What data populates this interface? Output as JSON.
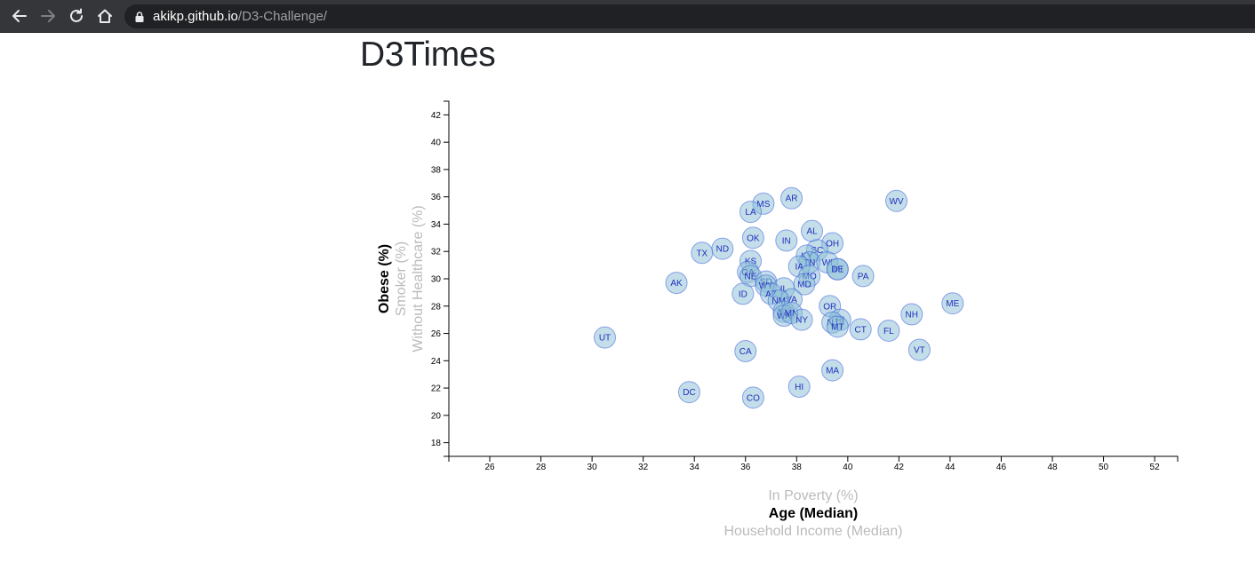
{
  "browser": {
    "url_host": "akikp.github.io",
    "url_path": "/D3-Challenge/",
    "icons": [
      "back-arrow-icon",
      "forward-arrow-icon",
      "reload-icon",
      "home-icon",
      "lock-icon"
    ]
  },
  "page": {
    "title": "D3Times"
  },
  "chart_data": {
    "type": "scatter",
    "title": "",
    "x_labels": [
      {
        "text": "In Poverty (%)",
        "active": false
      },
      {
        "text": "Age (Median)",
        "active": true
      },
      {
        "text": "Household Income (Median)",
        "active": false
      }
    ],
    "y_labels": [
      {
        "text": "Obese (%)",
        "active": true
      },
      {
        "text": "Smoker (%)",
        "active": false
      },
      {
        "text": "Without Healthcare (%)",
        "active": false
      }
    ],
    "xlabel": "Age (Median)",
    "ylabel": "Obese (%)",
    "xlim": [
      24.4,
      52.9
    ],
    "ylim": [
      17,
      43
    ],
    "x_ticks": [
      26,
      28,
      30,
      32,
      34,
      36,
      38,
      40,
      42,
      44,
      46,
      48,
      50,
      52
    ],
    "y_ticks": [
      18,
      20,
      22,
      24,
      26,
      28,
      30,
      32,
      34,
      36,
      38,
      40,
      42
    ],
    "colors": {
      "circle_fill": "#89bdd3",
      "circle_stroke": "#3b5fe0",
      "label": "#1f2fbf"
    },
    "points": [
      {
        "abbr": "WV",
        "x": 41.9,
        "y": 35.7
      },
      {
        "abbr": "AR",
        "x": 37.8,
        "y": 35.9
      },
      {
        "abbr": "MS",
        "x": 36.7,
        "y": 35.5
      },
      {
        "abbr": "LA",
        "x": 36.2,
        "y": 34.9
      },
      {
        "abbr": "AL",
        "x": 38.6,
        "y": 33.5
      },
      {
        "abbr": "OK",
        "x": 36.3,
        "y": 33.0
      },
      {
        "abbr": "IN",
        "x": 37.6,
        "y": 32.8
      },
      {
        "abbr": "OH",
        "x": 39.4,
        "y": 32.6
      },
      {
        "abbr": "ND",
        "x": 35.1,
        "y": 32.2
      },
      {
        "abbr": "TX",
        "x": 34.3,
        "y": 31.9
      },
      {
        "abbr": "SC",
        "x": 38.8,
        "y": 32.1
      },
      {
        "abbr": "KY",
        "x": 38.4,
        "y": 31.7
      },
      {
        "abbr": "TN",
        "x": 38.5,
        "y": 31.2
      },
      {
        "abbr": "WI",
        "x": 39.2,
        "y": 31.2
      },
      {
        "abbr": "KS",
        "x": 36.2,
        "y": 31.3
      },
      {
        "abbr": "IA",
        "x": 38.1,
        "y": 30.9
      },
      {
        "abbr": "MI",
        "x": 39.6,
        "y": 30.7
      },
      {
        "abbr": "DE",
        "x": 39.6,
        "y": 30.7
      },
      {
        "abbr": "GA",
        "x": 36.1,
        "y": 30.5
      },
      {
        "abbr": "NE",
        "x": 36.2,
        "y": 30.2
      },
      {
        "abbr": "MO",
        "x": 38.5,
        "y": 30.2
      },
      {
        "abbr": "PA",
        "x": 40.6,
        "y": 30.2
      },
      {
        "abbr": "SD",
        "x": 36.8,
        "y": 29.8
      },
      {
        "abbr": "WY",
        "x": 36.8,
        "y": 29.5
      },
      {
        "abbr": "MD",
        "x": 38.3,
        "y": 29.6
      },
      {
        "abbr": "AK",
        "x": 33.3,
        "y": 29.7
      },
      {
        "abbr": "IL",
        "x": 37.5,
        "y": 29.3
      },
      {
        "abbr": "ID",
        "x": 35.9,
        "y": 28.9
      },
      {
        "abbr": "AZ",
        "x": 37.0,
        "y": 28.9
      },
      {
        "abbr": "VA",
        "x": 37.8,
        "y": 28.5
      },
      {
        "abbr": "NM",
        "x": 37.3,
        "y": 28.4
      },
      {
        "abbr": "OR",
        "x": 39.3,
        "y": 28.0
      },
      {
        "abbr": "NV",
        "x": 37.5,
        "y": 27.6
      },
      {
        "abbr": "WA",
        "x": 37.5,
        "y": 27.3
      },
      {
        "abbr": "MN",
        "x": 37.8,
        "y": 27.5
      },
      {
        "abbr": "NY",
        "x": 38.2,
        "y": 27.0
      },
      {
        "abbr": "RI",
        "x": 39.7,
        "y": 27.0
      },
      {
        "abbr": "NJ",
        "x": 39.4,
        "y": 26.8
      },
      {
        "abbr": "MT",
        "x": 39.6,
        "y": 26.5
      },
      {
        "abbr": "ME",
        "x": 44.1,
        "y": 28.2
      },
      {
        "abbr": "NH",
        "x": 42.5,
        "y": 27.4
      },
      {
        "abbr": "CT",
        "x": 40.5,
        "y": 26.3
      },
      {
        "abbr": "FL",
        "x": 41.6,
        "y": 26.2
      },
      {
        "abbr": "UT",
        "x": 30.5,
        "y": 25.7
      },
      {
        "abbr": "VT",
        "x": 42.8,
        "y": 24.8
      },
      {
        "abbr": "CA",
        "x": 36.0,
        "y": 24.7
      },
      {
        "abbr": "MA",
        "x": 39.4,
        "y": 23.3
      },
      {
        "abbr": "HI",
        "x": 38.1,
        "y": 22.1
      },
      {
        "abbr": "DC",
        "x": 33.8,
        "y": 21.7
      },
      {
        "abbr": "CO",
        "x": 36.3,
        "y": 21.3
      }
    ]
  }
}
